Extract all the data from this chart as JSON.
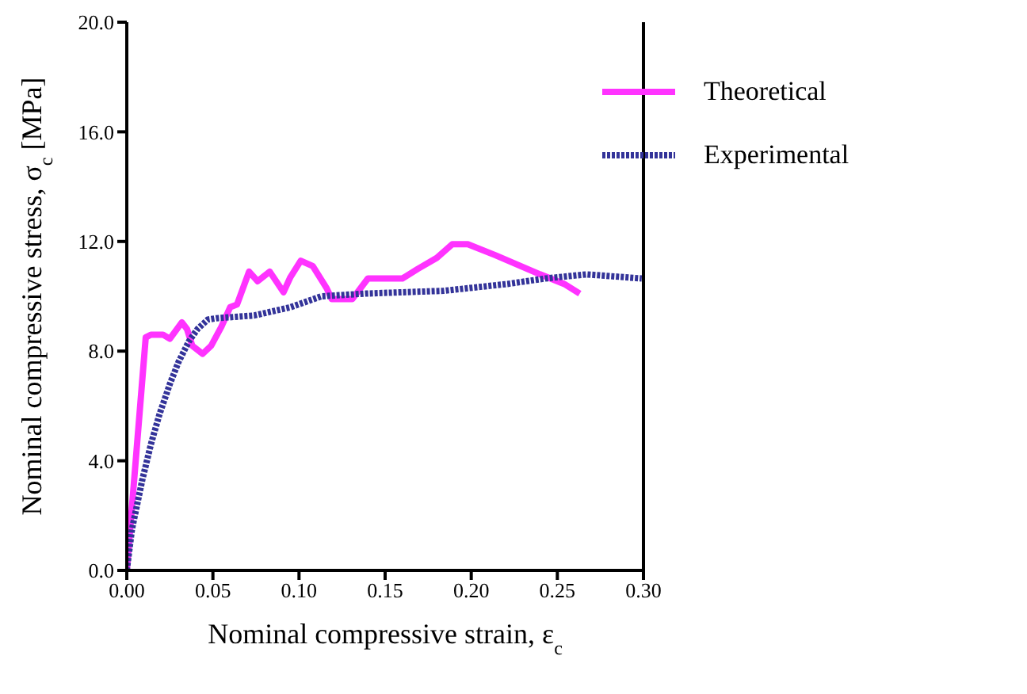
{
  "chart_data": {
    "type": "line",
    "xlabel": "Nominal compressive strain, ε$_{c}$",
    "ylabel": "Nominal compressive stress, σ$_{c}$ [MPa]",
    "xlim": [
      0,
      0.3
    ],
    "xticks": [
      {
        "value": 0,
        "label": "0.00"
      },
      {
        "value": 0.05,
        "label": "0.05"
      },
      {
        "value": 0.1,
        "label": "0.10"
      },
      {
        "value": 0.15,
        "label": "0.15"
      },
      {
        "value": 0.2,
        "label": "0.20"
      },
      {
        "value": 0.25,
        "label": "0.25"
      },
      {
        "value": 0.3,
        "label": "0.30"
      }
    ],
    "ylim": [
      0,
      20
    ],
    "yticks": [
      {
        "value": 0,
        "label": "0.0"
      },
      {
        "value": 4,
        "label": "4.0"
      },
      {
        "value": 8,
        "label": "8.0"
      },
      {
        "value": 12,
        "label": "12.0"
      },
      {
        "value": 16,
        "label": "16.0"
      },
      {
        "value": 20,
        "label": "20.0"
      }
    ],
    "grid": false,
    "legend": "top right",
    "marker": "none",
    "series": [
      {
        "name": "Theoretical",
        "color": "#ff33ff",
        "line_style": "solid",
        "x": [
          0,
          0.011,
          0.014,
          0.021,
          0.025,
          0.032,
          0.035,
          0.038,
          0.044,
          0.049,
          0.055,
          0.06,
          0.064,
          0.071,
          0.076,
          0.083,
          0.091,
          0.095,
          0.101,
          0.108,
          0.116,
          0.119,
          0.131,
          0.14,
          0.16,
          0.169,
          0.18,
          0.189,
          0.198,
          0.214,
          0.24,
          0.254,
          0.263
        ],
        "values": [
          0,
          8.5,
          8.6,
          8.6,
          8.45,
          9.05,
          8.8,
          8.2,
          7.9,
          8.2,
          8.9,
          9.6,
          9.7,
          10.9,
          10.55,
          10.9,
          10.15,
          10.7,
          11.3,
          11.1,
          10.3,
          9.9,
          9.9,
          10.65,
          10.65,
          11,
          11.4,
          11.9,
          11.9,
          11.5,
          10.8,
          10.45,
          10.1
        ]
      },
      {
        "name": "Experimental",
        "color": "#333399",
        "line_style": "dotted",
        "x": [
          0,
          0.003,
          0.009,
          0.014,
          0.019,
          0.025,
          0.03,
          0.036,
          0.041,
          0.047,
          0.052,
          0.074,
          0.095,
          0.113,
          0.139,
          0.184,
          0.221,
          0.243,
          0.267,
          0.299
        ],
        "values": [
          0,
          1.5,
          3.3,
          4.6,
          5.7,
          6.8,
          7.6,
          8.35,
          8.8,
          9.15,
          9.2,
          9.3,
          9.6,
          10,
          10.1,
          10.2,
          10.45,
          10.65,
          10.8,
          10.65
        ]
      }
    ]
  }
}
